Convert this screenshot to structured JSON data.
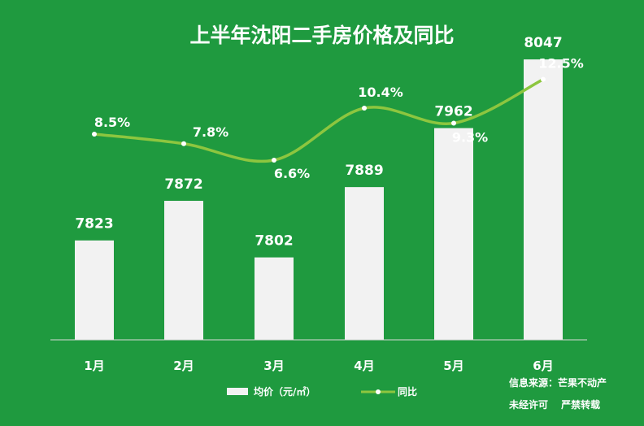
{
  "chart_data": {
    "type": "bar",
    "title": "上半年沈阳二手房价格及同比",
    "categories": [
      "1月",
      "2月",
      "3月",
      "4月",
      "5月",
      "6月"
    ],
    "series": [
      {
        "name": "均价（元/㎡）",
        "type": "bar",
        "values": [
          7823,
          7872,
          7802,
          7889,
          7962,
          8047
        ]
      },
      {
        "name": "同比",
        "type": "line",
        "values": [
          8.5,
          7.8,
          6.6,
          10.4,
          9.3,
          12.5
        ],
        "labels": [
          "8.5%",
          "7.8%",
          "6.6%",
          "10.4%",
          "9.3%",
          "12.5%"
        ]
      }
    ],
    "legend_position": "bottom-center",
    "grid": false
  },
  "source": {
    "line1": "信息来源：芒果不动产",
    "line2": "未经许可　 严禁转载"
  },
  "colors": {
    "background": "#1f9a3f",
    "bar": "#f2f2f2",
    "line": "#8dc63f",
    "text": "#ffffff"
  }
}
